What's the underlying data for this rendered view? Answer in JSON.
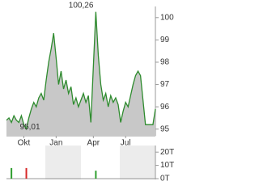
{
  "chart_data": {
    "type": "area",
    "categories": [
      null,
      null,
      null,
      null,
      null,
      null,
      null,
      "Okt",
      null,
      null,
      null,
      null,
      null,
      null,
      null,
      null,
      null,
      null,
      null,
      null,
      "Jan",
      null,
      null,
      null,
      null,
      null,
      null,
      null,
      null,
      null,
      null,
      null,
      null,
      null,
      null,
      "Apr",
      null,
      null,
      null,
      null,
      null,
      null,
      null,
      null,
      null,
      null,
      null,
      null,
      "Jul",
      null,
      null,
      null,
      null,
      null,
      null,
      null,
      null,
      null,
      null,
      null,
      null
    ],
    "series": [
      {
        "color": "#2e8b2e",
        "fill": "#c8c8c8",
        "values": [
          95.4,
          95.5,
          95.3,
          95.6,
          95.4,
          95.3,
          95.6,
          95.2,
          95.01,
          95.5,
          95.9,
          96.2,
          96.0,
          96.4,
          96.6,
          96.3,
          97.2,
          98.0,
          98.6,
          99.3,
          98.2,
          97.0,
          97.6,
          96.8,
          97.2,
          96.6,
          96.9,
          96.1,
          96.4,
          96.0,
          96.3,
          96.6,
          96.2,
          96.5,
          95.3,
          97.8,
          100.26,
          98.3,
          97.0,
          96.3,
          96.6,
          96.0,
          96.5,
          96.2,
          96.4,
          96.1,
          95.3,
          95.8,
          96.2,
          96.0,
          96.5,
          97.0,
          97.4,
          97.6,
          97.4,
          96.3,
          95.2,
          95.2,
          95.2,
          95.2,
          95.9
        ],
        "value_labels": [
          null,
          null,
          null,
          null,
          null,
          null,
          null,
          null,
          "95,01",
          null,
          null,
          null,
          null,
          null,
          null,
          null,
          null,
          null,
          null,
          null,
          null,
          null,
          null,
          null,
          null,
          null,
          null,
          null,
          null,
          null,
          null,
          null,
          null,
          null,
          null,
          null,
          "100,26",
          null,
          null,
          null,
          null,
          null,
          null,
          null,
          null,
          null,
          null,
          null,
          null,
          null,
          null,
          null,
          null,
          null,
          null,
          null,
          null,
          null,
          null,
          null,
          null
        ]
      }
    ],
    "ylim": [
      94.7,
      100.5
    ],
    "yticks": [
      95,
      96,
      97,
      98,
      99,
      100
    ],
    "volume": {
      "values": [
        null,
        null,
        8,
        null,
        null,
        null,
        null,
        null,
        8,
        null,
        null,
        null,
        null,
        null,
        null,
        null,
        null,
        null,
        null,
        null,
        null,
        null,
        null,
        null,
        null,
        null,
        null,
        null,
        null,
        null,
        null,
        null,
        null,
        null,
        null,
        null,
        6,
        null,
        null,
        null,
        null,
        null,
        null,
        null,
        null,
        null,
        null,
        null,
        null,
        null,
        null,
        null,
        null,
        null,
        null,
        null,
        null,
        null,
        null,
        null,
        null
      ],
      "colors": [
        null,
        null,
        "#2e9e2e",
        null,
        null,
        null,
        null,
        null,
        "#d62728",
        null,
        null,
        null,
        null,
        null,
        null,
        null,
        null,
        null,
        null,
        null,
        null,
        null,
        null,
        null,
        null,
        null,
        null,
        null,
        null,
        null,
        null,
        null,
        null,
        null,
        null,
        null,
        "#2e9e2e",
        null,
        null,
        null,
        null,
        null,
        null,
        null,
        null,
        null,
        null,
        null,
        null,
        null,
        null,
        null,
        null,
        null,
        null,
        null,
        null,
        null,
        null,
        null,
        null
      ],
      "ylim": [
        0,
        25
      ],
      "yticks": [
        {
          "value": 20,
          "label": "20T"
        },
        {
          "value": 10,
          "label": "10T"
        },
        {
          "value": 0,
          "label": "0T"
        }
      ]
    }
  }
}
